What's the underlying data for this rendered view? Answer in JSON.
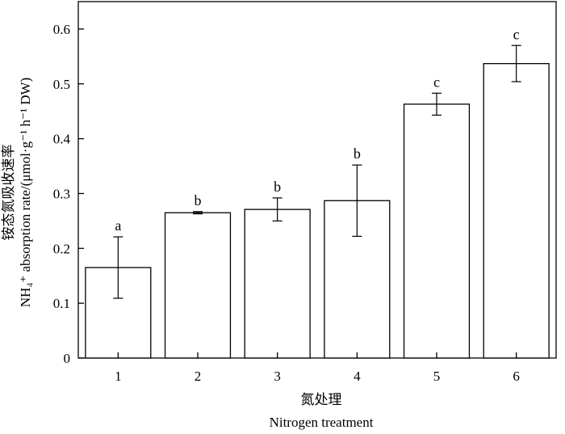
{
  "chart_data": {
    "type": "bar",
    "categories": [
      "1",
      "2",
      "3",
      "4",
      "5",
      "6"
    ],
    "values": [
      0.165,
      0.265,
      0.271,
      0.287,
      0.463,
      0.537
    ],
    "errors": [
      0.056,
      0.002,
      0.021,
      0.065,
      0.02,
      0.033
    ],
    "significance_letters": [
      "a",
      "b",
      "b",
      "b",
      "c",
      "c"
    ],
    "ylim": [
      0,
      0.65
    ],
    "yticks": [
      "0",
      "0.1",
      "0.2",
      "0.3",
      "0.4",
      "0.5",
      "0.6"
    ],
    "xlabel_cn": "氮处理",
    "xlabel_en": "Nitrogen treatment",
    "ylabel_cn": "铵态氮吸收速率",
    "ylabel_en": "NH₄⁺ absorption rate/(μmol·g⁻¹ h⁻¹ DW)",
    "grid": false,
    "colors": {
      "bar_fill": "#ffffff",
      "bar_stroke": "#000000",
      "axis": "#000000"
    }
  }
}
